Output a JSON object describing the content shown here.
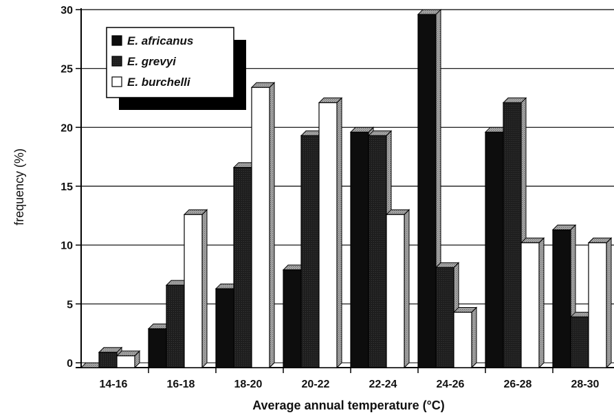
{
  "chart_data": {
    "type": "bar",
    "categories": [
      "14-16",
      "16-18",
      "18-20",
      "20-22",
      "22-24",
      "24-26",
      "26-28",
      "28-30"
    ],
    "series": [
      {
        "name": "E. africanus",
        "values": [
          0,
          3.3,
          6.7,
          8.3,
          20,
          30,
          20,
          11.7
        ],
        "color": "#0d0d0d"
      },
      {
        "name": "E. grevyi",
        "values": [
          1.3,
          7.0,
          17.0,
          19.7,
          19.7,
          8.5,
          22.5,
          4.3
        ],
        "color": "#1e1e1e"
      },
      {
        "name": "E. burchelli",
        "values": [
          1.0,
          13.0,
          23.8,
          22.5,
          13.0,
          4.7,
          10.6,
          10.6
        ],
        "color": "#ffffff"
      }
    ],
    "xlabel": "Average annual temperature (°C)",
    "ylabel": "frequency (%)",
    "ylim": [
      0,
      30
    ],
    "yticks": [
      0,
      5,
      10,
      15,
      20,
      25,
      30
    ],
    "grid": true,
    "legend_position": "top-left",
    "style": "3d"
  }
}
